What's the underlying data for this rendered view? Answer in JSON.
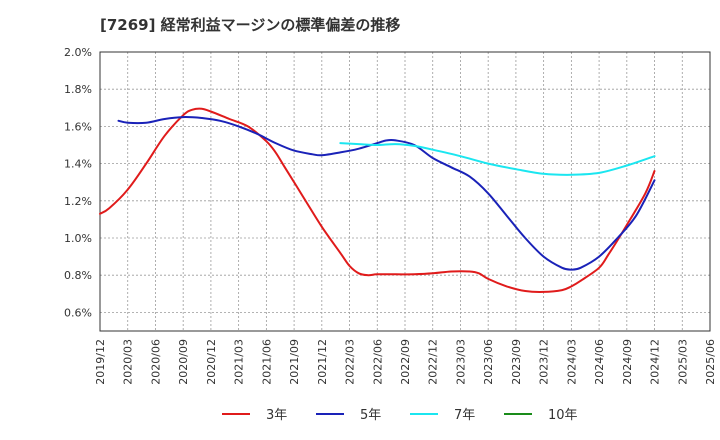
{
  "chart_data": {
    "type": "line",
    "title": "[7269]  経常利益マージンの標準偏差の推移",
    "xlabel": "",
    "ylabel": "",
    "ylim": [
      0.5,
      2.0
    ],
    "y_ticks": [
      "0.6%",
      "0.8%",
      "1.0%",
      "1.2%",
      "1.4%",
      "1.6%",
      "1.8%",
      "2.0%"
    ],
    "y_tick_values": [
      0.6,
      0.8,
      1.0,
      1.2,
      1.4,
      1.6,
      1.8,
      2.0
    ],
    "x_ticks": [
      "2019/12",
      "2020/03",
      "2020/06",
      "2020/09",
      "2020/12",
      "2021/03",
      "2021/06",
      "2021/09",
      "2021/12",
      "2022/03",
      "2022/06",
      "2022/09",
      "2022/12",
      "2023/03",
      "2023/06",
      "2023/09",
      "2023/12",
      "2024/03",
      "2024/06",
      "2024/09",
      "2024/12",
      "2025/03",
      "2025/06"
    ],
    "grid": true,
    "legend_position": "bottom",
    "series": [
      {
        "name": "3年",
        "color": "#e01b1b",
        "points": [
          [
            "2019/12",
            1.13
          ],
          [
            "2020/01",
            1.16
          ],
          [
            "2020/03",
            1.26
          ],
          [
            "2020/05",
            1.4
          ],
          [
            "2020/07",
            1.55
          ],
          [
            "2020/09",
            1.66
          ],
          [
            "2020/10",
            1.69
          ],
          [
            "2020/11",
            1.695
          ],
          [
            "2020/12",
            1.68
          ],
          [
            "2021/02",
            1.64
          ],
          [
            "2021/04",
            1.6
          ],
          [
            "2021/06",
            1.52
          ],
          [
            "2021/07",
            1.46
          ],
          [
            "2021/08",
            1.38
          ],
          [
            "2021/10",
            1.22
          ],
          [
            "2021/12",
            1.06
          ],
          [
            "2022/02",
            0.92
          ],
          [
            "2022/03",
            0.85
          ],
          [
            "2022/04",
            0.81
          ],
          [
            "2022/05",
            0.8
          ],
          [
            "2022/06",
            0.805
          ],
          [
            "2022/08",
            0.805
          ],
          [
            "2022/10",
            0.805
          ],
          [
            "2022/12",
            0.81
          ],
          [
            "2023/02",
            0.82
          ],
          [
            "2023/04",
            0.82
          ],
          [
            "2023/05",
            0.81
          ],
          [
            "2023/06",
            0.78
          ],
          [
            "2023/08",
            0.74
          ],
          [
            "2023/10",
            0.715
          ],
          [
            "2023/12",
            0.71
          ],
          [
            "2024/02",
            0.72
          ],
          [
            "2024/03",
            0.74
          ],
          [
            "2024/04",
            0.77
          ],
          [
            "2024/06",
            0.84
          ],
          [
            "2024/07",
            0.91
          ],
          [
            "2024/09",
            1.07
          ],
          [
            "2024/11",
            1.24
          ],
          [
            "2024/12",
            1.36
          ]
        ]
      },
      {
        "name": "5年",
        "color": "#1a22b8",
        "points": [
          [
            "2020/02",
            1.63
          ],
          [
            "2020/03",
            1.62
          ],
          [
            "2020/05",
            1.62
          ],
          [
            "2020/07",
            1.64
          ],
          [
            "2020/09",
            1.65
          ],
          [
            "2020/11",
            1.645
          ],
          [
            "2021/01",
            1.63
          ],
          [
            "2021/03",
            1.6
          ],
          [
            "2021/05",
            1.56
          ],
          [
            "2021/07",
            1.51
          ],
          [
            "2021/09",
            1.47
          ],
          [
            "2021/11",
            1.45
          ],
          [
            "2021/12",
            1.445
          ],
          [
            "2022/02",
            1.46
          ],
          [
            "2022/04",
            1.48
          ],
          [
            "2022/06",
            1.51
          ],
          [
            "2022/07",
            1.525
          ],
          [
            "2022/08",
            1.525
          ],
          [
            "2022/10",
            1.5
          ],
          [
            "2022/12",
            1.43
          ],
          [
            "2023/02",
            1.38
          ],
          [
            "2023/04",
            1.33
          ],
          [
            "2023/06",
            1.24
          ],
          [
            "2023/08",
            1.12
          ],
          [
            "2023/10",
            1.0
          ],
          [
            "2023/12",
            0.9
          ],
          [
            "2024/02",
            0.84
          ],
          [
            "2024/03",
            0.83
          ],
          [
            "2024/04",
            0.84
          ],
          [
            "2024/06",
            0.9
          ],
          [
            "2024/08",
            1.0
          ],
          [
            "2024/10",
            1.12
          ],
          [
            "2024/12",
            1.31
          ]
        ]
      },
      {
        "name": "7年",
        "color": "#1be6f0",
        "points": [
          [
            "2022/02",
            1.51
          ],
          [
            "2022/04",
            1.505
          ],
          [
            "2022/06",
            1.5
          ],
          [
            "2022/08",
            1.505
          ],
          [
            "2022/10",
            1.495
          ],
          [
            "2022/12",
            1.475
          ],
          [
            "2023/03",
            1.44
          ],
          [
            "2023/06",
            1.4
          ],
          [
            "2023/09",
            1.37
          ],
          [
            "2023/12",
            1.345
          ],
          [
            "2024/03",
            1.34
          ],
          [
            "2024/06",
            1.35
          ],
          [
            "2024/09",
            1.39
          ],
          [
            "2024/12",
            1.44
          ]
        ]
      },
      {
        "name": "10年",
        "color": "#1a8c1a",
        "points": []
      }
    ]
  }
}
